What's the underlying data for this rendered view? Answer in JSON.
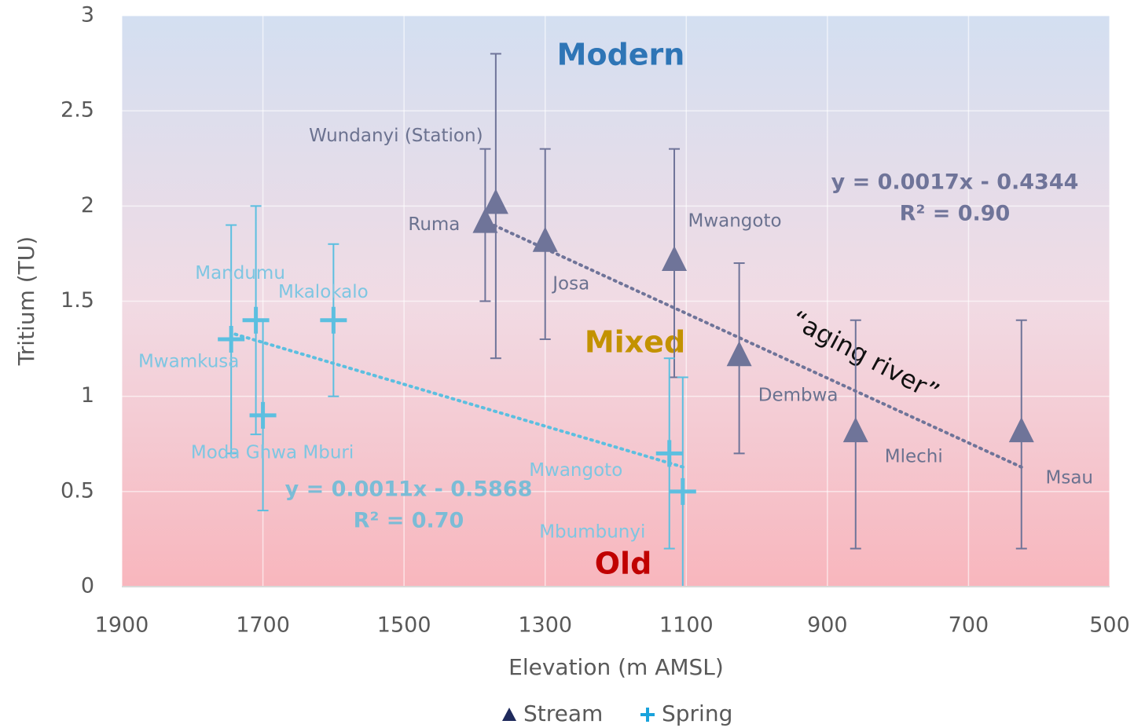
{
  "chart_data": {
    "type": "scatter",
    "xlabel": "Elevation (m AMSL)",
    "ylabel": "Tritium (TU)",
    "xlim": [
      1900,
      500
    ],
    "xticks": [
      1900,
      1700,
      1500,
      1300,
      1100,
      900,
      700,
      500
    ],
    "ylim": [
      0,
      3
    ],
    "yticks": [
      0,
      0.5,
      1,
      1.5,
      2,
      2.5,
      3
    ],
    "grid": true,
    "legend": "bottom",
    "series": [
      {
        "name": "Stream",
        "color": "#6f7499",
        "marker": "triangle",
        "x": [
          1385,
          1370,
          1300,
          1117,
          1025,
          860,
          625
        ],
        "values": [
          1.9,
          2.0,
          1.8,
          1.7,
          1.2,
          0.8,
          0.8
        ],
        "errors": [
          0.4,
          0.8,
          0.5,
          0.6,
          0.5,
          0.6,
          0.6
        ],
        "labels": [
          "Ruma",
          "Wundanyi (Station)",
          "Josa",
          "Mwangoto",
          "Dembwa",
          "Mlechi",
          "Msau"
        ],
        "trendline": {
          "slope": 0.0017,
          "intercept": -0.4344,
          "equation": "y = 0.0017x - 0.4344",
          "r2": "R² = 0.90"
        }
      },
      {
        "name": "Spring",
        "color": "#5cbfe0",
        "marker": "plus",
        "x": [
          1745,
          1710,
          1700,
          1600,
          1124,
          1105
        ],
        "values": [
          1.3,
          1.4,
          0.9,
          1.4,
          0.7,
          0.5
        ],
        "errors": [
          0.6,
          0.6,
          0.5,
          0.4,
          0.5,
          0.6
        ],
        "labels": [
          "Mwamkusa",
          "Mandumu",
          "Moda Ghwa Mburi",
          "Mkalokalo",
          "Mwangoto",
          "Mbumbunyi"
        ],
        "trendline": {
          "slope": 0.0011,
          "intercept": -0.5868,
          "equation": "y = 0.0011x - 0.5868",
          "r2": "R² = 0.70"
        }
      }
    ],
    "annotations": [
      "Modern",
      "Mixed",
      "Old",
      "“aging river”"
    ]
  }
}
